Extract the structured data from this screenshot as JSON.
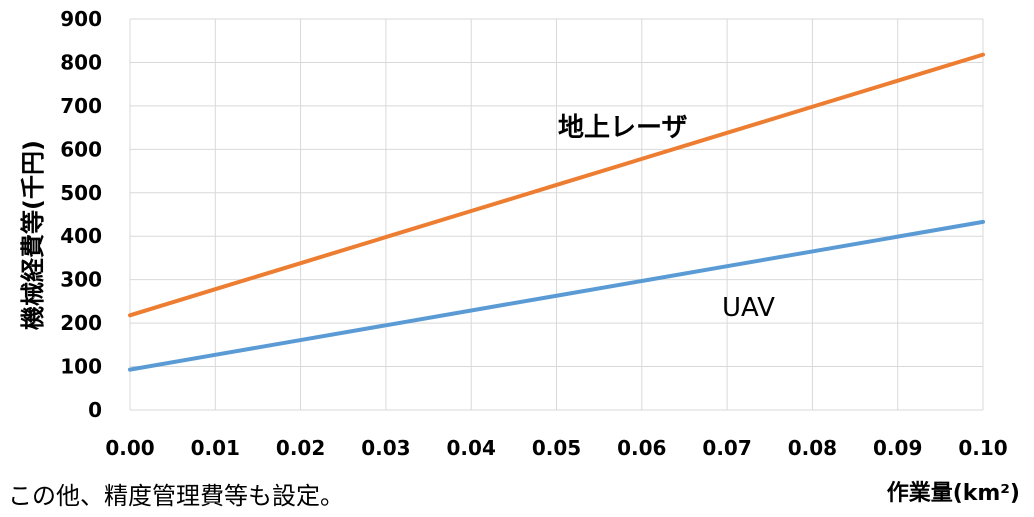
{
  "chart_data": {
    "type": "line",
    "x": [
      0.0,
      0.01,
      0.02,
      0.03,
      0.04,
      0.05,
      0.06,
      0.07,
      0.08,
      0.09,
      0.1
    ],
    "x_tick_labels": [
      "0.00",
      "0.01",
      "0.02",
      "0.03",
      "0.04",
      "0.05",
      "0.06",
      "0.07",
      "0.08",
      "0.09",
      "0.10"
    ],
    "y_tick_labels": [
      "0",
      "100",
      "200",
      "300",
      "400",
      "500",
      "600",
      "700",
      "800",
      "900"
    ],
    "xlim": [
      0,
      0.1
    ],
    "ylim": [
      0,
      900
    ],
    "xlabel": "作業量(km²)",
    "ylabel": "機械経費等(千円)",
    "grid": true,
    "series": [
      {
        "name": "地上レーザ",
        "color": "#ED7D31",
        "values": [
          218,
          278,
          338,
          398,
          458,
          518,
          578,
          638,
          698,
          758,
          818
        ]
      },
      {
        "name": "UAV",
        "color": "#5B9BD5",
        "values": [
          93,
          127,
          161,
          195,
          229,
          263,
          297,
          331,
          365,
          399,
          433
        ]
      }
    ]
  },
  "footnote": "この他、精度管理費等も設定。"
}
